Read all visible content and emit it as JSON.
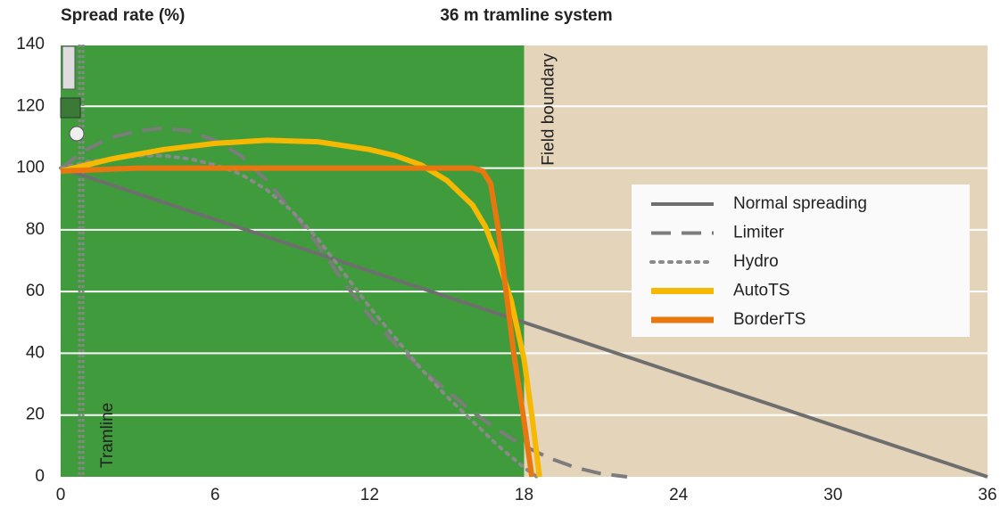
{
  "chart_data": {
    "type": "line",
    "title": "36 m tramline system",
    "ylabel": "Spread rate (%)",
    "xlim": [
      0,
      36
    ],
    "ylim": [
      0,
      140
    ],
    "xticks": [
      0,
      6,
      12,
      18,
      24,
      30,
      36
    ],
    "yticks": [
      0,
      20,
      40,
      60,
      80,
      100,
      120,
      140
    ],
    "grid": true,
    "legend": "right",
    "regions": [
      {
        "from": 0,
        "to": 18,
        "color": "#3f9b3c"
      },
      {
        "from": 18,
        "to": 36,
        "color": "#e4d4ba"
      }
    ],
    "annotations": [
      {
        "text": "Field boundary",
        "x": 18
      },
      {
        "text": "Tramline",
        "x": 0.8
      }
    ],
    "series": [
      {
        "name": "Normal spreading",
        "color": "#6e6e6e",
        "style": "solid",
        "x": [
          0,
          18,
          36
        ],
        "values": [
          100,
          50,
          0
        ]
      },
      {
        "name": "Limiter",
        "color": "#7c7c7c",
        "style": "dashed",
        "x": [
          0,
          1,
          2,
          3,
          4,
          5,
          6,
          7,
          8,
          9,
          10,
          11,
          12,
          13,
          14,
          15,
          16,
          17,
          18,
          19,
          20,
          21,
          22
        ],
        "values": [
          100,
          106,
          110,
          112,
          113,
          112,
          109,
          104,
          96,
          86,
          75,
          63,
          52,
          43,
          35,
          28,
          21,
          15,
          10,
          6,
          3,
          1,
          0
        ]
      },
      {
        "name": "Hydro",
        "color": "#8a8a8a",
        "style": "dotted",
        "x": [
          0,
          1,
          2,
          3,
          4,
          5,
          6,
          7,
          8,
          9,
          10,
          11,
          12,
          13,
          14,
          15,
          16,
          17,
          18,
          18.5
        ],
        "values": [
          100,
          102,
          103,
          104,
          104,
          103,
          101,
          98,
          93,
          86,
          77,
          66,
          55,
          45,
          35,
          26,
          18,
          10,
          3,
          0
        ]
      },
      {
        "name": "AutoTS",
        "color": "#f6b800",
        "style": "solid",
        "x": [
          0,
          2,
          4,
          6,
          8,
          10,
          12,
          13,
          14,
          15,
          16,
          16.5,
          17,
          17.5,
          18,
          18.3,
          18.6
        ],
        "values": [
          99,
          103,
          106,
          108,
          109,
          108.5,
          106,
          104,
          101,
          96,
          88,
          81,
          70,
          57,
          38,
          20,
          0
        ]
      },
      {
        "name": "BorderTS",
        "color": "#e8770f",
        "style": "solid",
        "x": [
          0,
          3,
          8,
          14,
          16,
          16.4,
          16.7,
          17,
          17.3,
          17.6,
          18,
          18.3
        ],
        "values": [
          99,
          100,
          100,
          100,
          100,
          99,
          95,
          80,
          60,
          40,
          18,
          0
        ]
      }
    ]
  }
}
